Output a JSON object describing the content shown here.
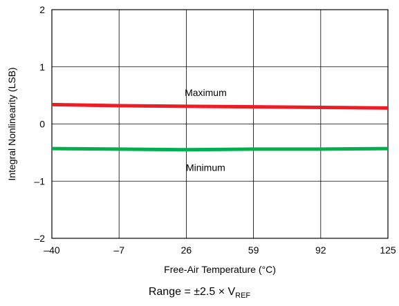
{
  "chart_data": {
    "type": "line",
    "xlabel": "Free-Air Temperature (°C)",
    "ylabel": "Integral Nonlinearity (LSB)",
    "xlim": [
      -40,
      125
    ],
    "ylim": [
      -2,
      2
    ],
    "xticks": [
      -40,
      -7,
      26,
      59,
      92,
      125
    ],
    "xtick_labels": [
      "–40",
      "–7",
      "26",
      "59",
      "92",
      "125"
    ],
    "yticks": [
      -2,
      -1,
      0,
      1,
      2
    ],
    "ytick_labels": [
      "–2",
      "–1",
      "0",
      "1",
      "2"
    ],
    "grid": true,
    "series": [
      {
        "name": "Maximum",
        "color": "#ee1c25",
        "x": [
          -40,
          -7,
          26,
          59,
          92,
          125
        ],
        "values": [
          0.34,
          0.32,
          0.31,
          0.3,
          0.29,
          0.28
        ]
      },
      {
        "name": "Minimum",
        "color": "#00b050",
        "x": [
          -40,
          -7,
          26,
          59,
          92,
          125
        ],
        "values": [
          -0.43,
          -0.44,
          -0.45,
          -0.44,
          -0.44,
          -0.43
        ]
      }
    ],
    "caption_main": "Range = ±2.5 × V",
    "caption_sub": "REF"
  }
}
